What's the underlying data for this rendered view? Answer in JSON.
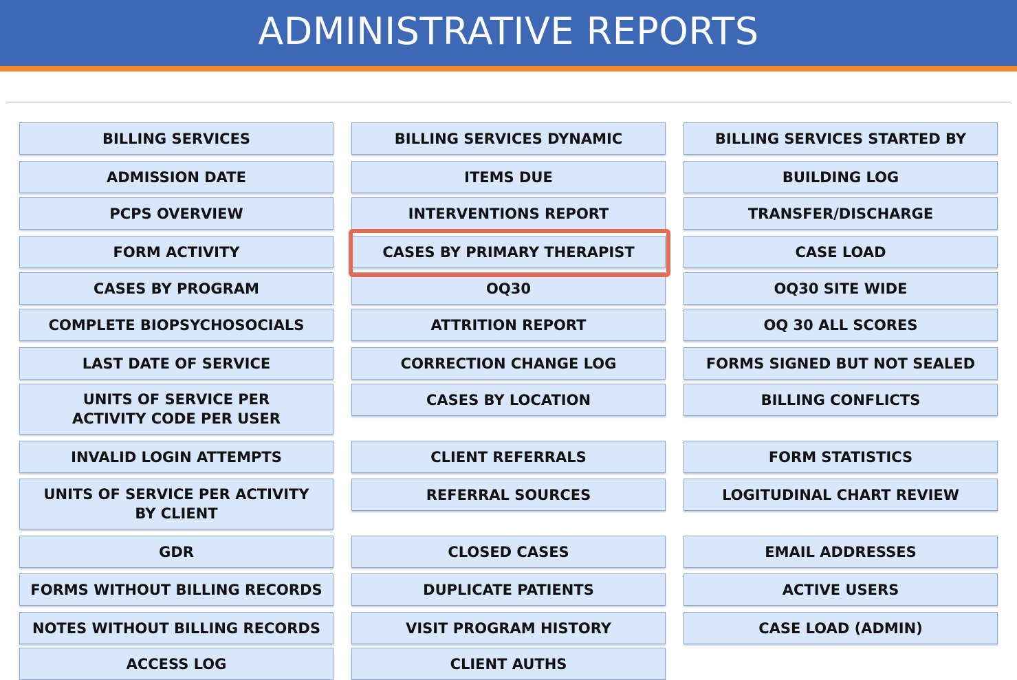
{
  "header": {
    "title": "ADMINISTRATIVE REPORTS"
  },
  "colors": {
    "header_bg": "#3d68b5",
    "header_accent": "#f28a2e",
    "button_bg": "#d8e7fb",
    "highlight": "#e66a52"
  },
  "reports": {
    "col1": [
      "BILLING SERVICES",
      "ADMISSION DATE",
      "PCPS OVERVIEW",
      "FORM ACTIVITY",
      "CASES BY PROGRAM",
      "COMPLETE BIOPSYCHOSOCIALS",
      "LAST DATE OF SERVICE",
      "UNITS OF SERVICE PER ACTIVITY CODE PER USER",
      "INVALID LOGIN ATTEMPTS",
      "UNITS OF SERVICE PER ACTIVITY BY CLIENT",
      "GDR",
      "FORMS WITHOUT BILLING RECORDS",
      "NOTES WITHOUT BILLING RECORDS",
      "ACCESS LOG"
    ],
    "col2": [
      "BILLING SERVICES DYNAMIC",
      "ITEMS DUE",
      "INTERVENTIONS REPORT",
      "CASES BY PRIMARY THERAPIST",
      "OQ30",
      "ATTRITION REPORT",
      "CORRECTION CHANGE LOG",
      "CASES BY LOCATION",
      "CLIENT REFERRALS",
      "REFERRAL SOURCES",
      "CLOSED CASES",
      "DUPLICATE PATIENTS",
      "VISIT PROGRAM HISTORY",
      "CLIENT AUTHS"
    ],
    "col3": [
      "BILLING SERVICES STARTED BY",
      "BUILDING LOG",
      "TRANSFER/DISCHARGE",
      "CASE LOAD",
      "OQ30 SITE WIDE",
      "OQ 30 ALL SCORES",
      "FORMS SIGNED BUT NOT SEALED",
      "BILLING CONFLICTS",
      "FORM STATISTICS",
      "LOGITUDINAL CHART REVIEW",
      "EMAIL ADDRESSES",
      "ACTIVE USERS",
      "CASE LOAD (ADMIN)"
    ]
  }
}
